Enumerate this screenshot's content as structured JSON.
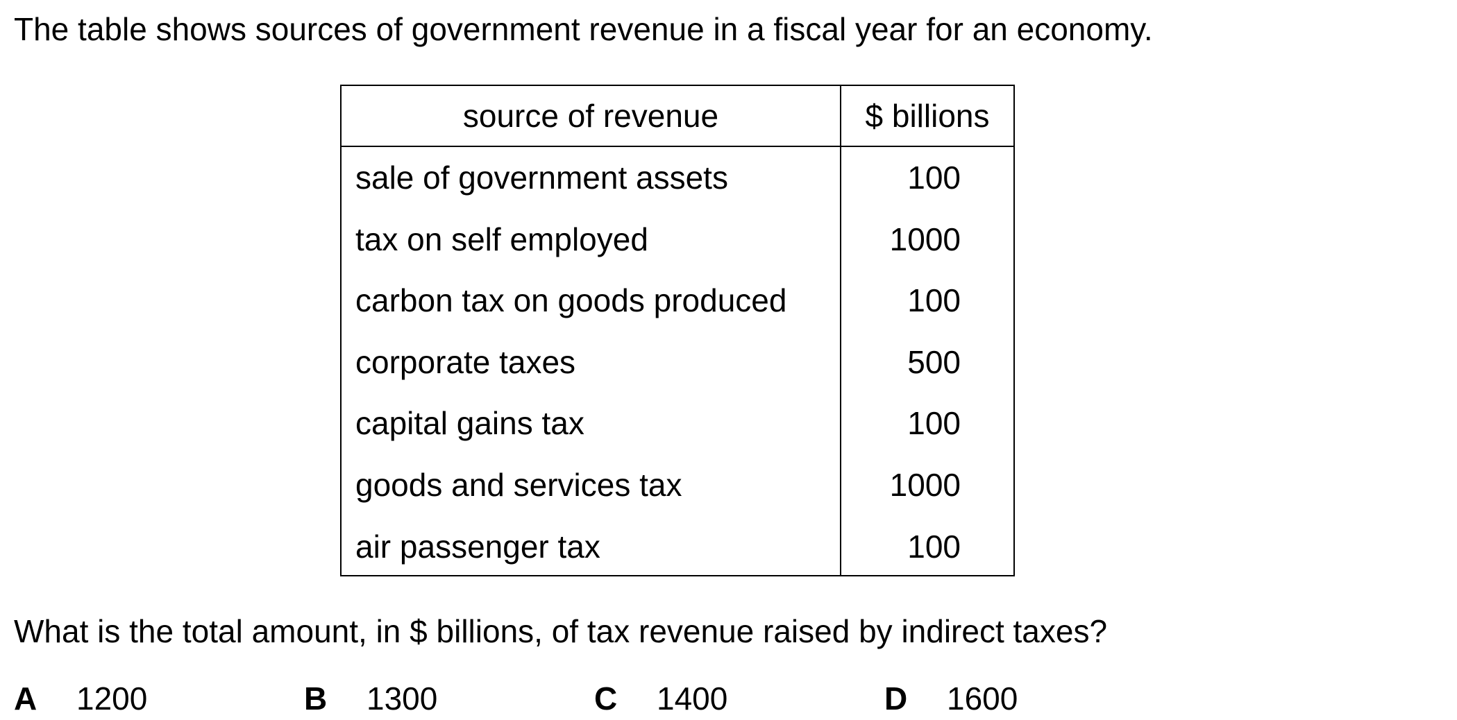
{
  "intro_text": "The table shows sources of government revenue in a fiscal year for an economy.",
  "table": {
    "headers": {
      "source": "source of revenue",
      "amount": "$ billions"
    },
    "rows": [
      {
        "source": "sale of government assets",
        "amount": "100"
      },
      {
        "source": "tax on self employed",
        "amount": "1000"
      },
      {
        "source": "carbon tax on goods produced",
        "amount": "100"
      },
      {
        "source": "corporate taxes",
        "amount": "500"
      },
      {
        "source": "capital gains tax",
        "amount": "100"
      },
      {
        "source": "goods and services tax",
        "amount": "1000"
      },
      {
        "source": "air passenger tax",
        "amount": "100"
      }
    ]
  },
  "question_text": "What is the total amount, in $ billions, of tax revenue raised by indirect taxes?",
  "options": [
    {
      "letter": "A",
      "value": "1200"
    },
    {
      "letter": "B",
      "value": "1300"
    },
    {
      "letter": "C",
      "value": "1400"
    },
    {
      "letter": "D",
      "value": "1600"
    }
  ]
}
